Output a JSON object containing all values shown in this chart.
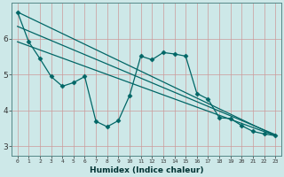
{
  "xlabel": "Humidex (Indice chaleur)",
  "bg_color": "#cde8e8",
  "grid_color": "#b0d0d0",
  "line_color": "#006666",
  "xlim": [
    -0.5,
    23.5
  ],
  "ylim": [
    2.75,
    7.0
  ],
  "x_ticks": [
    0,
    1,
    2,
    3,
    4,
    5,
    6,
    7,
    8,
    9,
    10,
    11,
    12,
    13,
    14,
    15,
    16,
    17,
    18,
    19,
    20,
    21,
    22,
    23
  ],
  "y_ticks": [
    3,
    4,
    5,
    6
  ],
  "curve_x": [
    0,
    1,
    2,
    3,
    4,
    5,
    6,
    7,
    8,
    9,
    10,
    11,
    12,
    13,
    14,
    15,
    16,
    17,
    18,
    19,
    20,
    21,
    22,
    23
  ],
  "curve_y": [
    6.75,
    5.92,
    5.45,
    4.95,
    4.68,
    4.78,
    4.95,
    3.7,
    3.55,
    3.72,
    4.42,
    5.52,
    5.42,
    5.62,
    5.58,
    5.52,
    4.48,
    4.32,
    3.8,
    3.78,
    3.58,
    3.42,
    3.35,
    3.3
  ],
  "line1_y0": 6.75,
  "line1_y1": 3.3,
  "line2_y0": 6.35,
  "line2_y1": 3.33,
  "line3_y0": 5.92,
  "line3_y1": 3.3
}
